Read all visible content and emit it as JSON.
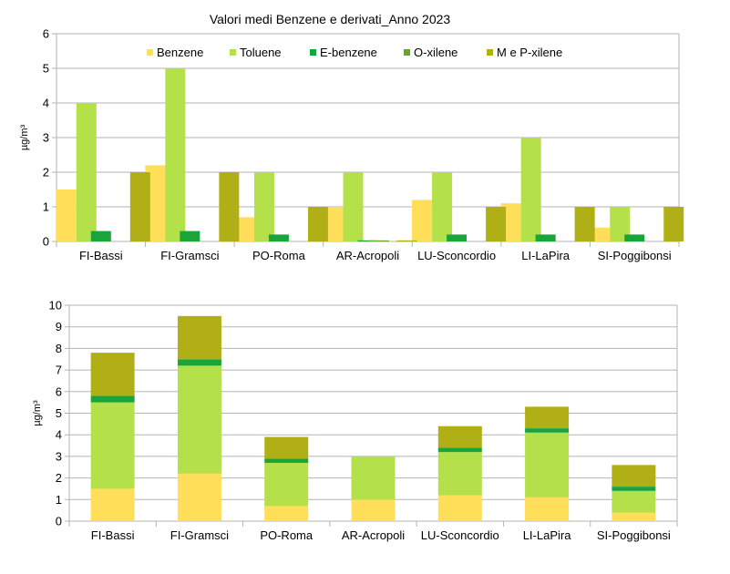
{
  "chart_title": "Valori medi Benzene e derivati_Anno 2023",
  "colors": {
    "benzene": "#ffde59",
    "toluene": "#b4e04a",
    "ebenzene": "#1aa53a",
    "oxilene": "#66a62a",
    "mpxilene": "#b0b016",
    "grid": "#b3b3b3",
    "axis": "#b3b3b3"
  },
  "chart_data": [
    {
      "type": "bar",
      "title": "Valori medi Benzene e derivati_Anno 2023",
      "ylabel": "µg/m³",
      "ylim": [
        0,
        6
      ],
      "yticks": [
        0,
        1,
        2,
        3,
        4,
        5,
        6
      ],
      "grid": true,
      "legend_position": "top",
      "categories": [
        "FI-Bassi",
        "FI-Gramsci",
        "PO-Roma",
        "AR-Acropoli",
        "LU-Sconcordio",
        "LI-LaPira",
        "SI-Poggibonsi"
      ],
      "series": [
        {
          "name": "Benzene",
          "color_key": "benzene",
          "values": [
            1.5,
            2.2,
            0.7,
            1.0,
            1.2,
            1.1,
            0.4
          ]
        },
        {
          "name": "Toluene",
          "color_key": "toluene",
          "values": [
            4,
            5,
            2,
            2,
            2,
            3,
            1
          ]
        },
        {
          "name": "E-benzene",
          "color_key": "ebenzene",
          "values": [
            0.3,
            0.3,
            0.2,
            0.03,
            0.2,
            0.2,
            0.2
          ]
        },
        {
          "name": "O-xilene",
          "color_key": "oxilene",
          "values": [
            0,
            0,
            0,
            0.03,
            0,
            0,
            0
          ]
        },
        {
          "name": "M e P-xilene",
          "color_key": "mpxilene",
          "values": [
            2,
            2,
            1,
            0.03,
            1,
            1,
            1
          ]
        }
      ]
    },
    {
      "type": "stacked-bar",
      "ylabel": "µg/m³",
      "ylim": [
        0,
        10
      ],
      "yticks": [
        0,
        1,
        2,
        3,
        4,
        5,
        6,
        7,
        8,
        9,
        10
      ],
      "grid": true,
      "categories": [
        "FI-Bassi",
        "FI-Gramsci",
        "PO-Roma",
        "AR-Acropoli",
        "LU-Sconcordio",
        "LI-LaPira",
        "SI-Poggibonsi"
      ],
      "series": [
        {
          "name": "Benzene",
          "color_key": "benzene",
          "values": [
            1.5,
            2.2,
            0.7,
            1.0,
            1.2,
            1.1,
            0.4
          ]
        },
        {
          "name": "Toluene",
          "color_key": "toluene",
          "values": [
            4,
            5,
            2,
            2,
            2,
            3,
            1
          ]
        },
        {
          "name": "E-benzene",
          "color_key": "ebenzene",
          "values": [
            0.3,
            0.3,
            0.2,
            0,
            0.2,
            0.2,
            0.2
          ]
        },
        {
          "name": "O-xilene",
          "color_key": "oxilene",
          "values": [
            0,
            0,
            0,
            0,
            0,
            0,
            0
          ]
        },
        {
          "name": "M e P-xilene",
          "color_key": "mpxilene",
          "values": [
            2,
            2,
            1,
            0,
            1,
            1,
            1
          ]
        }
      ]
    }
  ]
}
